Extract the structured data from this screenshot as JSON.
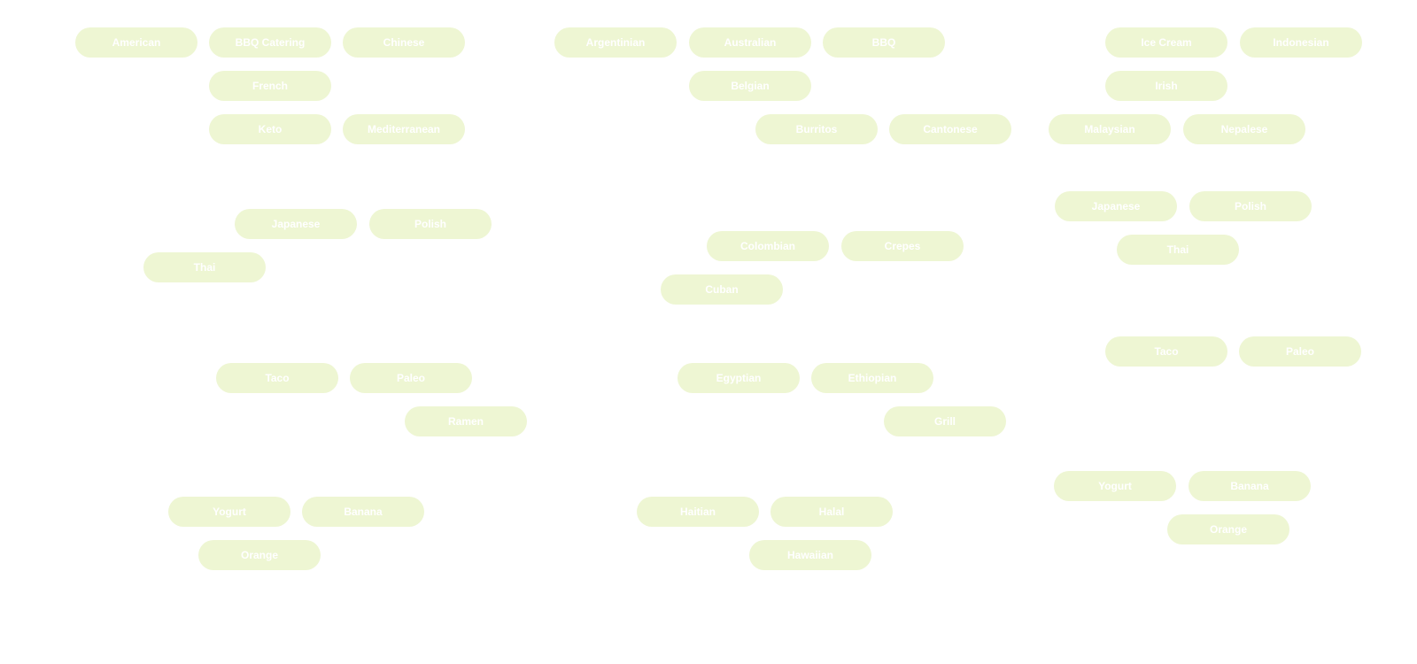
{
  "groups": [
    {
      "name": "left",
      "rows": [
        [
          "American",
          "BBQ Catering",
          "Chinese"
        ],
        [
          "French"
        ],
        [
          "Keto",
          "Mediterranean"
        ],
        [
          "Japanese",
          "Polish"
        ],
        [
          "Thai"
        ],
        [
          "Taco",
          "Paleo"
        ],
        [
          "Ramen"
        ],
        [
          "Yogurt",
          "Banana"
        ],
        [
          "Orange"
        ]
      ]
    },
    {
      "name": "middle",
      "rows": [
        [
          "Argentinian",
          "Australian",
          "BBQ"
        ],
        [
          "Belgian"
        ],
        [
          "Burritos",
          "Cantonese"
        ],
        [
          "Colombian",
          "Crepes"
        ],
        [
          "Cuban"
        ],
        [
          "Egyptian",
          "Ethiopian"
        ],
        [
          "Grill"
        ],
        [
          "Haitian",
          "Halal"
        ],
        [
          "Hawaiian"
        ]
      ]
    },
    {
      "name": "right",
      "rows": [
        [
          "Ice Cream",
          "Indonesian"
        ],
        [
          "Irish"
        ],
        [
          "Malaysian",
          "Nepalese"
        ],
        [
          "Japanese",
          "Polish"
        ],
        [
          "Thai"
        ],
        [
          "Taco",
          "Paleo"
        ],
        [
          "Yogurt",
          "Banana"
        ],
        [
          "Orange"
        ]
      ]
    }
  ],
  "colors": {
    "pill_background": "#eef6d3",
    "pill_text": "#ffffff",
    "page_background": "#ffffff"
  }
}
